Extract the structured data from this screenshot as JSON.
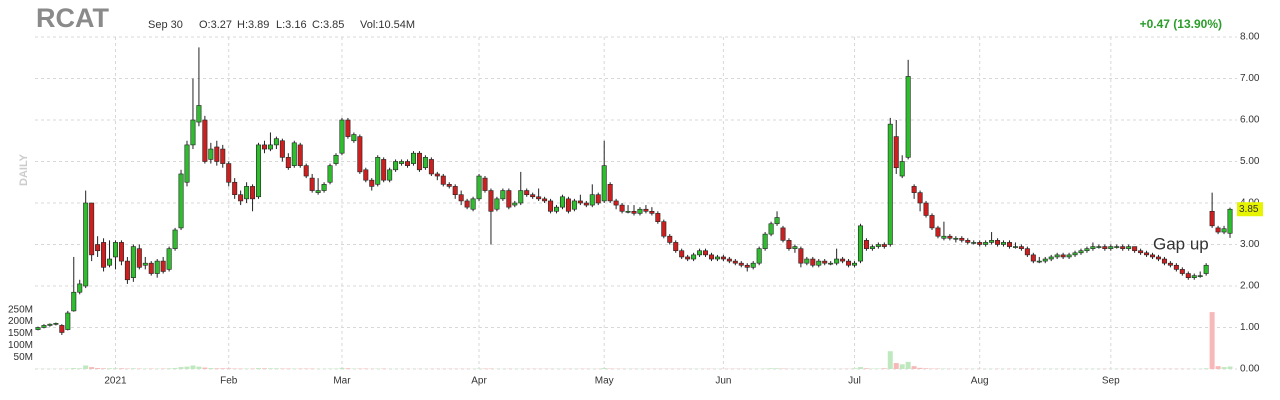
{
  "chart_data": {
    "type": "candlestick",
    "header": {
      "ticker": "RCAT",
      "date": "Sep 30",
      "open": "O:3.27",
      "high": "H:3.89",
      "low": "L:3.16",
      "close": "C:3.85",
      "volume": "Vol:10.54M",
      "change": "+0.47 (13.90%)",
      "period": "DAILY"
    },
    "annotation": "Gap up",
    "up_color": "#2fbd2f",
    "down_color": "#cc2020",
    "up_volume_color": "#bfe8bf",
    "down_volume_color": "#f6b8b8",
    "ylim": [
      0,
      8
    ],
    "yticks": [
      {
        "value": 0,
        "label": "0.00"
      },
      {
        "value": 1,
        "label": "1.00"
      },
      {
        "value": 2,
        "label": "2.00"
      },
      {
        "value": 3,
        "label": "3.00"
      },
      {
        "value": 4,
        "label": "4.00"
      },
      {
        "value": 5,
        "label": "5.00"
      },
      {
        "value": 6,
        "label": "6.00"
      },
      {
        "value": 7,
        "label": "7.00"
      },
      {
        "value": 8,
        "label": "8.00"
      }
    ],
    "y2lim": [
      0,
      1400
    ],
    "y2ticks": [
      {
        "value": 50,
        "label": "50M"
      },
      {
        "value": 100,
        "label": "100M"
      },
      {
        "value": 150,
        "label": "150M"
      },
      {
        "value": 200,
        "label": "200M"
      },
      {
        "value": 250,
        "label": "250M"
      }
    ],
    "grid": true,
    "categories": [
      null,
      null,
      null,
      null,
      null,
      null,
      null,
      null,
      null,
      null,
      null,
      null,
      null,
      "2021",
      null,
      null,
      null,
      null,
      null,
      null,
      null,
      null,
      null,
      null,
      null,
      null,
      null,
      null,
      null,
      null,
      null,
      null,
      "Feb",
      null,
      null,
      null,
      null,
      null,
      null,
      null,
      null,
      null,
      null,
      null,
      null,
      null,
      null,
      null,
      null,
      null,
      null,
      "Mar",
      null,
      null,
      null,
      null,
      null,
      null,
      null,
      null,
      null,
      null,
      null,
      null,
      null,
      null,
      null,
      null,
      null,
      null,
      null,
      null,
      null,
      null,
      "Apr",
      null,
      null,
      null,
      null,
      null,
      null,
      null,
      null,
      null,
      null,
      null,
      null,
      null,
      null,
      null,
      null,
      null,
      null,
      null,
      null,
      "May",
      null,
      null,
      null,
      null,
      null,
      null,
      null,
      null,
      null,
      null,
      null,
      null,
      null,
      null,
      null,
      null,
      null,
      null,
      null,
      "Jun",
      null,
      null,
      null,
      null,
      null,
      null,
      null,
      null,
      null,
      null,
      null,
      null,
      null,
      null,
      null,
      null,
      null,
      null,
      null,
      null,
      null,
      "Jul",
      null,
      null,
      null,
      null,
      null,
      null,
      null,
      null,
      null,
      null,
      null,
      null,
      null,
      null,
      null,
      null,
      null,
      null,
      null,
      null,
      "Aug",
      null,
      null,
      null,
      null,
      null,
      null,
      null,
      null,
      null,
      null,
      null,
      null,
      null,
      null,
      null,
      null,
      null,
      null,
      null,
      null,
      null,
      "Sep",
      null,
      null,
      null,
      null,
      null,
      null,
      null,
      null,
      null,
      null,
      null,
      null,
      null,
      null,
      null,
      null,
      null,
      null,
      null,
      null
    ],
    "ohlc": [
      [
        0.95,
        1.02,
        0.93,
        1.0
      ],
      [
        1.0,
        1.08,
        0.98,
        1.05
      ],
      [
        1.05,
        1.1,
        1.02,
        1.08
      ],
      [
        1.08,
        1.12,
        1.05,
        1.1
      ],
      [
        1.05,
        1.08,
        0.82,
        0.88
      ],
      [
        0.95,
        1.4,
        0.93,
        1.35
      ],
      [
        1.4,
        2.7,
        1.38,
        1.85
      ],
      [
        1.85,
        2.15,
        1.8,
        2.05
      ],
      [
        2.0,
        4.3,
        1.95,
        4.0
      ],
      [
        4.0,
        4.0,
        2.6,
        2.75
      ],
      [
        3.0,
        3.2,
        2.7,
        2.85
      ],
      [
        3.05,
        3.15,
        2.35,
        2.45
      ],
      [
        2.5,
        3.1,
        2.45,
        2.65
      ],
      [
        2.7,
        3.1,
        2.4,
        3.05
      ],
      [
        3.05,
        3.1,
        2.5,
        2.6
      ],
      [
        2.6,
        2.7,
        2.05,
        2.15
      ],
      [
        2.2,
        3.0,
        2.1,
        2.95
      ],
      [
        2.9,
        3.0,
        2.4,
        2.45
      ],
      [
        2.5,
        2.7,
        2.4,
        2.55
      ],
      [
        2.55,
        2.6,
        2.25,
        2.3
      ],
      [
        2.3,
        2.65,
        2.2,
        2.6
      ],
      [
        2.6,
        2.7,
        2.3,
        2.35
      ],
      [
        2.4,
        2.95,
        2.35,
        2.9
      ],
      [
        2.9,
        3.4,
        2.85,
        3.35
      ],
      [
        3.4,
        4.8,
        3.35,
        4.7
      ],
      [
        4.5,
        5.5,
        4.4,
        5.4
      ],
      [
        5.4,
        7.0,
        5.3,
        6.0
      ],
      [
        5.95,
        7.75,
        5.85,
        6.35
      ],
      [
        6.0,
        6.1,
        4.95,
        5.0
      ],
      [
        5.05,
        5.45,
        4.95,
        5.3
      ],
      [
        5.35,
        5.5,
        4.9,
        5.0
      ],
      [
        5.3,
        5.4,
        4.85,
        4.95
      ],
      [
        4.95,
        5.0,
        4.4,
        4.5
      ],
      [
        4.5,
        4.6,
        4.1,
        4.2
      ],
      [
        4.2,
        4.3,
        3.95,
        4.05
      ],
      [
        4.1,
        4.5,
        4.0,
        4.4
      ],
      [
        4.4,
        4.45,
        3.8,
        4.1
      ],
      [
        4.15,
        5.45,
        4.1,
        5.4
      ],
      [
        5.4,
        5.5,
        5.2,
        5.3
      ],
      [
        5.3,
        5.7,
        5.25,
        5.4
      ],
      [
        5.4,
        5.6,
        5.3,
        5.55
      ],
      [
        5.5,
        5.55,
        5.0,
        5.1
      ],
      [
        5.1,
        5.2,
        4.8,
        4.85
      ],
      [
        4.9,
        5.5,
        4.85,
        5.45
      ],
      [
        5.4,
        5.45,
        4.85,
        4.9
      ],
      [
        4.9,
        4.95,
        4.6,
        4.65
      ],
      [
        4.6,
        4.7,
        4.25,
        4.3
      ],
      [
        4.25,
        4.6,
        4.2,
        4.3
      ],
      [
        4.3,
        4.5,
        4.25,
        4.45
      ],
      [
        4.5,
        4.95,
        4.45,
        4.9
      ],
      [
        4.95,
        5.2,
        4.9,
        5.15
      ],
      [
        5.2,
        6.05,
        5.15,
        6.0
      ],
      [
        6.0,
        6.05,
        5.55,
        5.6
      ],
      [
        5.5,
        5.7,
        5.45,
        5.65
      ],
      [
        5.6,
        5.65,
        4.7,
        4.75
      ],
      [
        4.8,
        4.85,
        4.5,
        4.55
      ],
      [
        4.55,
        4.6,
        4.3,
        4.4
      ],
      [
        4.45,
        5.15,
        4.4,
        5.1
      ],
      [
        5.05,
        5.1,
        4.5,
        4.55
      ],
      [
        4.55,
        4.85,
        4.5,
        4.8
      ],
      [
        4.8,
        5.05,
        4.75,
        5.0
      ],
      [
        4.95,
        5.05,
        4.9,
        5.0
      ],
      [
        5.0,
        5.05,
        4.85,
        4.9
      ],
      [
        4.95,
        5.25,
        4.9,
        5.2
      ],
      [
        5.2,
        5.25,
        4.75,
        4.8
      ],
      [
        4.85,
        5.15,
        4.8,
        5.1
      ],
      [
        5.05,
        5.1,
        4.65,
        4.7
      ],
      [
        4.7,
        4.75,
        4.55,
        4.65
      ],
      [
        4.65,
        4.7,
        4.4,
        4.45
      ],
      [
        4.45,
        4.5,
        4.35,
        4.4
      ],
      [
        4.4,
        4.45,
        4.1,
        4.2
      ],
      [
        4.2,
        4.3,
        3.95,
        4.05
      ],
      [
        4.05,
        4.1,
        3.85,
        3.9
      ],
      [
        3.85,
        4.15,
        3.8,
        4.1
      ],
      [
        4.1,
        4.7,
        4.05,
        4.65
      ],
      [
        4.6,
        4.65,
        4.25,
        4.3
      ],
      [
        4.3,
        4.35,
        3.0,
        3.8
      ],
      [
        3.85,
        4.15,
        3.8,
        4.1
      ],
      [
        4.1,
        4.35,
        4.05,
        4.3
      ],
      [
        4.3,
        4.35,
        3.85,
        3.9
      ],
      [
        3.95,
        4.05,
        3.9,
        4.0
      ],
      [
        4.0,
        4.75,
        3.95,
        4.3
      ],
      [
        4.3,
        4.35,
        4.15,
        4.2
      ],
      [
        4.2,
        4.25,
        4.1,
        4.15
      ],
      [
        4.15,
        4.35,
        4.05,
        4.1
      ],
      [
        4.1,
        4.15,
        4.0,
        4.05
      ],
      [
        4.05,
        4.1,
        3.75,
        3.8
      ],
      [
        3.8,
        3.95,
        3.75,
        3.9
      ],
      [
        3.9,
        4.2,
        3.85,
        4.15
      ],
      [
        4.1,
        4.15,
        3.75,
        3.8
      ],
      [
        3.85,
        4.1,
        3.8,
        4.05
      ],
      [
        4.05,
        4.2,
        3.95,
        4.0
      ],
      [
        4.0,
        4.05,
        3.9,
        3.95
      ],
      [
        3.95,
        4.45,
        3.9,
        4.2
      ],
      [
        4.2,
        4.25,
        3.95,
        4.0
      ],
      [
        4.05,
        5.5,
        4.0,
        4.9
      ],
      [
        4.45,
        4.5,
        4.0,
        4.05
      ],
      [
        4.05,
        4.1,
        3.85,
        3.95
      ],
      [
        3.95,
        4.0,
        3.75,
        3.8
      ],
      [
        3.8,
        3.95,
        3.75,
        3.8
      ],
      [
        3.8,
        3.95,
        3.7,
        3.75
      ],
      [
        3.75,
        3.9,
        3.7,
        3.85
      ],
      [
        3.85,
        3.95,
        3.75,
        3.8
      ],
      [
        3.8,
        3.9,
        3.7,
        3.75
      ],
      [
        3.75,
        3.8,
        3.5,
        3.55
      ],
      [
        3.55,
        3.6,
        3.15,
        3.2
      ],
      [
        3.2,
        3.25,
        3.0,
        3.05
      ],
      [
        3.05,
        3.1,
        2.8,
        2.85
      ],
      [
        2.85,
        2.9,
        2.65,
        2.7
      ],
      [
        2.7,
        2.75,
        2.6,
        2.65
      ],
      [
        2.65,
        2.8,
        2.6,
        2.75
      ],
      [
        2.75,
        2.9,
        2.7,
        2.85
      ],
      [
        2.85,
        2.9,
        2.7,
        2.75
      ],
      [
        2.75,
        2.8,
        2.6,
        2.65
      ],
      [
        2.65,
        2.75,
        2.6,
        2.7
      ],
      [
        2.7,
        2.75,
        2.6,
        2.65
      ],
      [
        2.65,
        2.7,
        2.55,
        2.6
      ],
      [
        2.6,
        2.65,
        2.5,
        2.55
      ],
      [
        2.55,
        2.6,
        2.45,
        2.5
      ],
      [
        2.5,
        2.55,
        2.35,
        2.45
      ],
      [
        2.45,
        2.6,
        2.4,
        2.55
      ],
      [
        2.55,
        2.95,
        2.5,
        2.9
      ],
      [
        2.9,
        3.3,
        2.85,
        3.25
      ],
      [
        3.25,
        3.55,
        3.2,
        3.5
      ],
      [
        3.5,
        3.8,
        3.45,
        3.65
      ],
      [
        3.4,
        3.45,
        3.05,
        3.1
      ],
      [
        3.1,
        3.15,
        2.85,
        2.9
      ],
      [
        2.9,
        3.0,
        2.8,
        2.95
      ],
      [
        2.9,
        2.95,
        2.45,
        2.55
      ],
      [
        2.55,
        2.7,
        2.5,
        2.65
      ],
      [
        2.65,
        2.7,
        2.45,
        2.5
      ],
      [
        2.5,
        2.65,
        2.45,
        2.6
      ],
      [
        2.6,
        2.65,
        2.5,
        2.55
      ],
      [
        2.55,
        2.6,
        2.5,
        2.55
      ],
      [
        2.55,
        2.9,
        2.5,
        2.65
      ],
      [
        2.65,
        2.7,
        2.55,
        2.6
      ],
      [
        2.6,
        2.65,
        2.45,
        2.5
      ],
      [
        2.5,
        2.6,
        2.45,
        2.55
      ],
      [
        2.6,
        3.5,
        2.55,
        3.45
      ],
      [
        3.1,
        3.15,
        2.85,
        2.9
      ],
      [
        2.9,
        3.0,
        2.85,
        2.95
      ],
      [
        2.95,
        3.05,
        2.9,
        3.0
      ],
      [
        3.0,
        3.05,
        2.9,
        2.95
      ],
      [
        3.0,
        6.05,
        2.95,
        5.9
      ],
      [
        5.6,
        6.0,
        4.7,
        4.85
      ],
      [
        4.65,
        5.15,
        4.6,
        5.0
      ],
      [
        5.1,
        7.45,
        5.05,
        7.05
      ],
      [
        4.4,
        4.45,
        4.1,
        4.25
      ],
      [
        4.25,
        4.3,
        3.8,
        4.0
      ],
      [
        4.0,
        4.05,
        3.65,
        3.7
      ],
      [
        3.7,
        3.75,
        3.35,
        3.4
      ],
      [
        3.4,
        3.45,
        3.15,
        3.2
      ],
      [
        3.15,
        3.55,
        3.1,
        3.2
      ],
      [
        3.2,
        3.25,
        3.1,
        3.15
      ],
      [
        3.15,
        3.2,
        3.05,
        3.15
      ],
      [
        3.15,
        3.2,
        3.05,
        3.1
      ],
      [
        3.1,
        3.15,
        3.0,
        3.05
      ],
      [
        3.05,
        3.1,
        3.0,
        3.05
      ],
      [
        3.05,
        3.1,
        2.95,
        3.0
      ],
      [
        3.0,
        3.1,
        2.95,
        3.05
      ],
      [
        3.05,
        3.3,
        3.0,
        3.1
      ],
      [
        3.1,
        3.15,
        2.95,
        3.0
      ],
      [
        3.0,
        3.1,
        2.95,
        3.05
      ],
      [
        3.05,
        3.1,
        2.9,
        2.95
      ],
      [
        2.95,
        3.05,
        2.9,
        2.95
      ],
      [
        2.95,
        3.0,
        2.85,
        2.9
      ],
      [
        2.9,
        2.95,
        2.7,
        2.75
      ],
      [
        2.75,
        2.8,
        2.55,
        2.6
      ],
      [
        2.6,
        2.7,
        2.55,
        2.6
      ],
      [
        2.6,
        2.7,
        2.55,
        2.65
      ],
      [
        2.65,
        2.75,
        2.6,
        2.7
      ],
      [
        2.7,
        2.8,
        2.65,
        2.75
      ],
      [
        2.75,
        2.8,
        2.65,
        2.7
      ],
      [
        2.7,
        2.8,
        2.65,
        2.75
      ],
      [
        2.75,
        2.85,
        2.7,
        2.8
      ],
      [
        2.8,
        2.9,
        2.75,
        2.85
      ],
      [
        2.85,
        2.95,
        2.8,
        2.9
      ],
      [
        2.9,
        3.05,
        2.85,
        2.95
      ],
      [
        2.95,
        3.0,
        2.9,
        2.95
      ],
      [
        2.95,
        3.0,
        2.85,
        2.9
      ],
      [
        2.9,
        3.0,
        2.85,
        2.95
      ],
      [
        2.95,
        3.0,
        2.9,
        2.95
      ],
      [
        2.95,
        3.0,
        2.85,
        2.9
      ],
      [
        2.9,
        3.0,
        2.85,
        2.95
      ],
      [
        2.95,
        2.95,
        2.8,
        2.85
      ],
      [
        2.85,
        2.9,
        2.75,
        2.8
      ],
      [
        2.8,
        2.85,
        2.7,
        2.75
      ],
      [
        2.75,
        2.8,
        2.65,
        2.7
      ],
      [
        2.7,
        2.75,
        2.6,
        2.65
      ],
      [
        2.65,
        2.7,
        2.5,
        2.55
      ],
      [
        2.55,
        2.6,
        2.45,
        2.5
      ],
      [
        2.5,
        2.55,
        2.35,
        2.4
      ],
      [
        2.4,
        2.45,
        2.25,
        2.3
      ],
      [
        2.3,
        2.35,
        2.15,
        2.2
      ],
      [
        2.2,
        2.3,
        2.15,
        2.25
      ],
      [
        2.25,
        2.35,
        2.2,
        2.25
      ],
      [
        2.3,
        2.55,
        2.25,
        2.5
      ],
      [
        3.8,
        4.25,
        3.4,
        3.45
      ],
      [
        3.4,
        3.45,
        3.25,
        3.3
      ],
      [
        3.3,
        3.45,
        3.25,
        3.38
      ],
      [
        3.27,
        3.89,
        3.16,
        3.85
      ]
    ],
    "volume": [
      1,
      1,
      1,
      1,
      1,
      2,
      4,
      3,
      15,
      8,
      4,
      3,
      3,
      3,
      3,
      2,
      3,
      2,
      2,
      2,
      2,
      2,
      3,
      4,
      8,
      10,
      15,
      10,
      6,
      4,
      3,
      3,
      3,
      2,
      2,
      2,
      2,
      4,
      3,
      3,
      3,
      2,
      2,
      2,
      2,
      2,
      2,
      1,
      1,
      2,
      2,
      5,
      3,
      2,
      2,
      2,
      1,
      2,
      2,
      1,
      1,
      1,
      1,
      1,
      1,
      1,
      1,
      1,
      1,
      1,
      1,
      1,
      1,
      1,
      2,
      2,
      2,
      1,
      1,
      1,
      1,
      1,
      1,
      1,
      1,
      1,
      1,
      1,
      1,
      1,
      1,
      1,
      1,
      1,
      1,
      4,
      2,
      1,
      1,
      1,
      1,
      1,
      1,
      1,
      1,
      1,
      1,
      1,
      1,
      1,
      1,
      1,
      1,
      1,
      1,
      1,
      1,
      1,
      1,
      1,
      1,
      1,
      2,
      3,
      3,
      2,
      1,
      1,
      1,
      1,
      1,
      1,
      1,
      1,
      1,
      1,
      1,
      3,
      8,
      3,
      2,
      2,
      3,
      75,
      25,
      20,
      30,
      12,
      5,
      3,
      2,
      2,
      2,
      1,
      1,
      1,
      1,
      1,
      1,
      1,
      1,
      1,
      1,
      1,
      1,
      1,
      1,
      1,
      1,
      1,
      1,
      1,
      1,
      1,
      1,
      1,
      1,
      1,
      1,
      1,
      1,
      1,
      1,
      1,
      1,
      1,
      1,
      1,
      1,
      1,
      1,
      1,
      1,
      1,
      1,
      1,
      3,
      240,
      12,
      8,
      10.54
    ]
  }
}
